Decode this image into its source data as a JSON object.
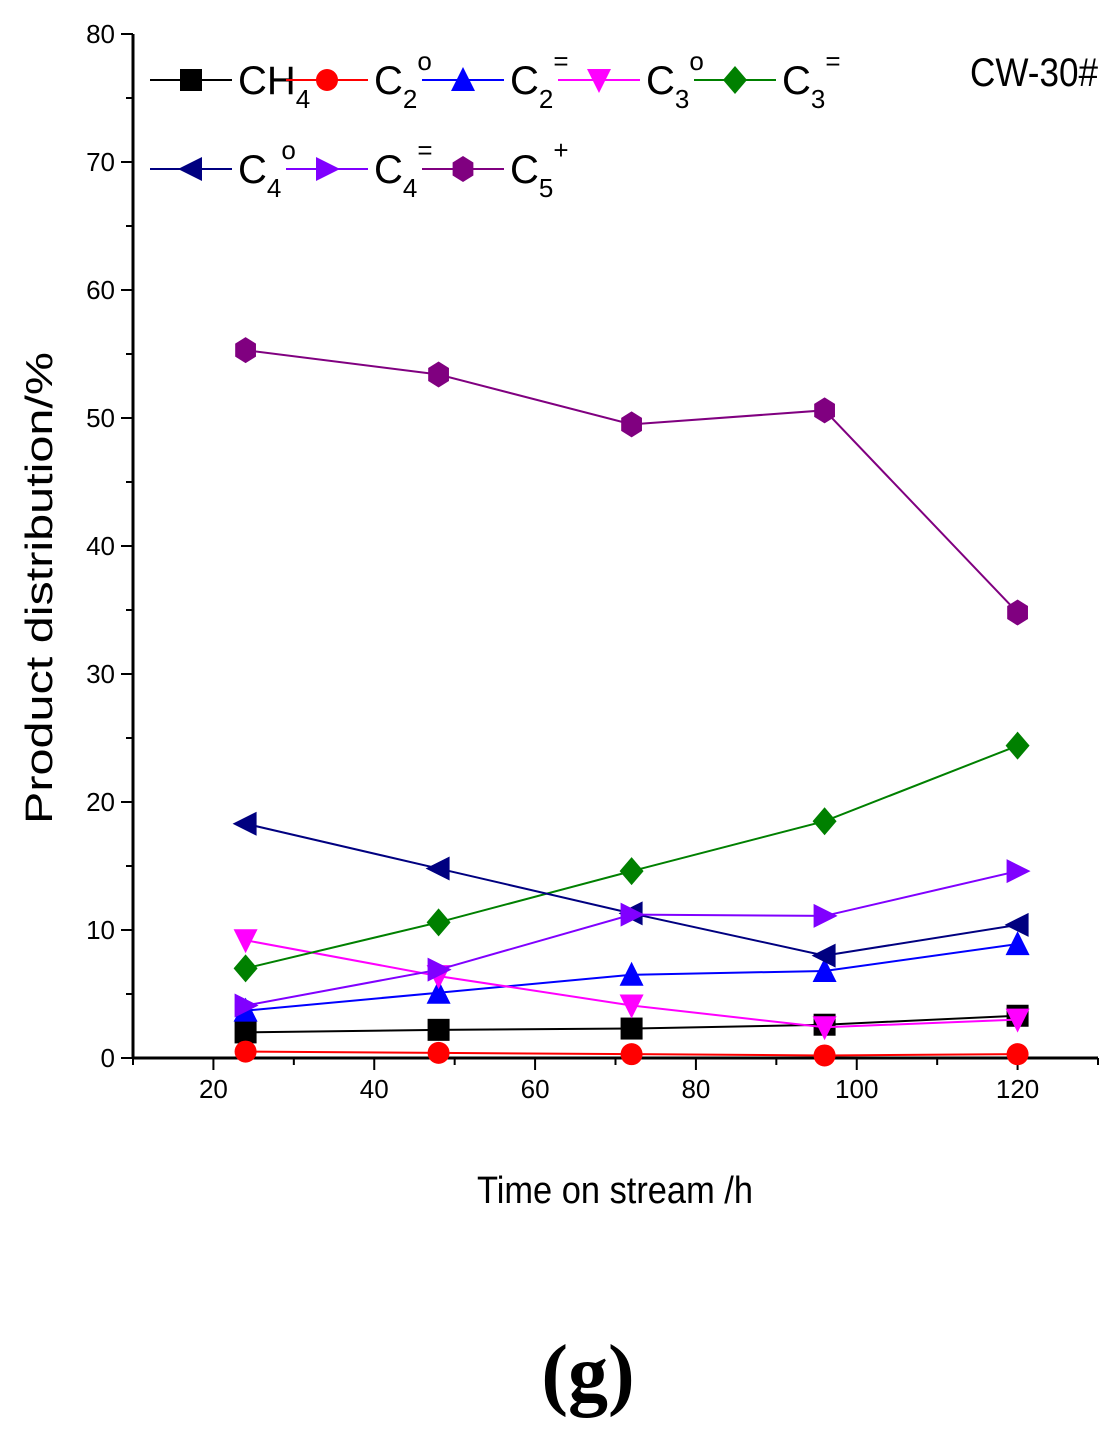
{
  "chart_data": {
    "type": "line",
    "title": "",
    "annotation": "CW-30#",
    "panel_label": "(g)",
    "xlabel": "Time on stream /h",
    "ylabel": "Product distribution/%",
    "xlim": [
      10,
      130
    ],
    "ylim": [
      0,
      80
    ],
    "xticks": [
      20,
      40,
      60,
      80,
      100,
      120
    ],
    "yticks": [
      0,
      10,
      20,
      30,
      40,
      50,
      60,
      70,
      80
    ],
    "x": [
      24,
      48,
      72,
      96,
      120
    ],
    "series": [
      {
        "name": "CH4",
        "base": "CH",
        "sub": "4",
        "sup": "",
        "color": "#000000",
        "marker": "square",
        "values": [
          2.0,
          2.2,
          2.3,
          2.6,
          3.3
        ]
      },
      {
        "name": "C2°",
        "base": "C",
        "sub": "2",
        "sup": "o",
        "color": "#ff0000",
        "marker": "circle",
        "values": [
          0.5,
          0.4,
          0.3,
          0.2,
          0.3
        ]
      },
      {
        "name": "C2=",
        "base": "C",
        "sub": "2",
        "sup": "=",
        "color": "#0000ff",
        "marker": "triangle-up",
        "values": [
          3.7,
          5.1,
          6.5,
          6.8,
          8.9
        ]
      },
      {
        "name": "C3°",
        "base": "C",
        "sub": "3",
        "sup": "o",
        "color": "#ff00ff",
        "marker": "triangle-down",
        "values": [
          9.2,
          6.4,
          4.1,
          2.4,
          3.0
        ]
      },
      {
        "name": "C3=",
        "base": "C",
        "sub": "3",
        "sup": "=",
        "color": "#008000",
        "marker": "diamond",
        "values": [
          7.0,
          10.6,
          14.6,
          18.5,
          24.4
        ]
      },
      {
        "name": "C4°",
        "base": "C",
        "sub": "4",
        "sup": "o",
        "color": "#000080",
        "marker": "triangle-left",
        "values": [
          18.3,
          14.8,
          11.3,
          8.0,
          10.4
        ]
      },
      {
        "name": "C4=",
        "base": "C",
        "sub": "4",
        "sup": "=",
        "color": "#8000ff",
        "marker": "triangle-right",
        "values": [
          4.1,
          6.9,
          11.2,
          11.1,
          14.6
        ]
      },
      {
        "name": "C5+",
        "base": "C",
        "sub": "5",
        "sup": "+",
        "color": "#800080",
        "marker": "hexagon",
        "values": [
          55.3,
          53.4,
          49.5,
          50.6,
          34.8
        ]
      }
    ],
    "legend_position": "top-left"
  }
}
